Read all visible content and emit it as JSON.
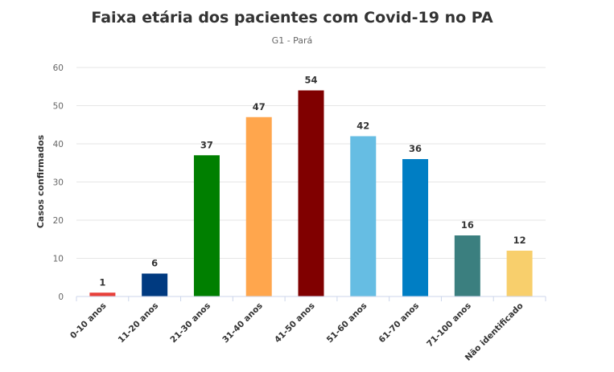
{
  "chart_data": {
    "type": "bar",
    "title": "Faixa etária dos pacientes com Covid-19 no PA",
    "subtitle": "G1 - Pará",
    "ylabel": "Casos confirmados",
    "xlabel": "",
    "ylim": [
      0,
      60
    ],
    "yticks": [
      0,
      10,
      20,
      30,
      40,
      50,
      60
    ],
    "grid": true,
    "categories": [
      "0-10 anos",
      "11-20 anos",
      "21-30 anos",
      "31-40 anos",
      "41-50 anos",
      "51-60 anos",
      "61-70 anos",
      "71-100 anos",
      "Não identificado"
    ],
    "values": [
      1,
      6,
      37,
      47,
      54,
      42,
      36,
      16,
      12
    ],
    "colors": [
      "#e8403a",
      "#003a80",
      "#007f00",
      "#ffa64d",
      "#800000",
      "#66bde3",
      "#007ec4",
      "#3b7f7f",
      "#f8cf6c"
    ]
  }
}
